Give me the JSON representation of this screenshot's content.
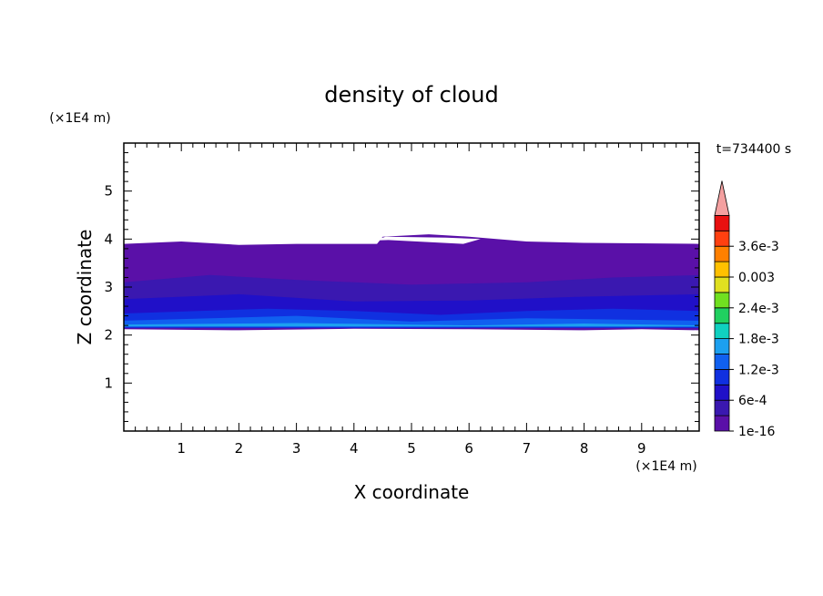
{
  "chart_data": {
    "type": "heatmap",
    "title": "density of cloud",
    "xlabel": "X coordinate",
    "ylabel": "Z coordinate",
    "x_unit": "(×1E4 m)",
    "y_unit": "(×1E4 m)",
    "time_label": "t=734400 s",
    "xlim": [
      0,
      10
    ],
    "ylim": [
      0,
      6
    ],
    "x_ticks": [
      1,
      2,
      3,
      4,
      5,
      6,
      7,
      8,
      9
    ],
    "y_ticks": [
      1,
      2,
      3,
      4,
      5
    ],
    "colorbar": {
      "levels": [
        "1e-16",
        "",
        "6e-4",
        "",
        "1.2e-3",
        "",
        "1.8e-3",
        "",
        "2.4e-3",
        "",
        "0.003",
        "",
        "3.6e-3",
        ""
      ],
      "labels": [
        {
          "text": "1e-16",
          "level": 0
        },
        {
          "text": "6e-4",
          "level": 2
        },
        {
          "text": "1.2e-3",
          "level": 4
        },
        {
          "text": "1.8e-3",
          "level": 6
        },
        {
          "text": "2.4e-3",
          "level": 8
        },
        {
          "text": "0.003",
          "level": 10
        },
        {
          "text": "3.6e-3",
          "level": 12
        }
      ],
      "colors": [
        "#5a10a8",
        "#3a18b0",
        "#2010c8",
        "#1030e0",
        "#1060f0",
        "#1ca0f0",
        "#10d0c0",
        "#20d060",
        "#70e020",
        "#e0e020",
        "#ffc000",
        "#ff8000",
        "#ff4010",
        "#e81010"
      ],
      "extend_color": "#f4a0a0"
    },
    "regions": [
      {
        "name": "cloud-layer",
        "level": 0,
        "outline": [
          [
            0,
            3.9
          ],
          [
            1,
            3.95
          ],
          [
            2,
            3.88
          ],
          [
            3,
            3.9
          ],
          [
            4.4,
            3.9
          ],
          [
            4.5,
            4.05
          ],
          [
            5.3,
            4.1
          ],
          [
            6,
            4.05
          ],
          [
            7,
            3.95
          ],
          [
            8,
            3.92
          ],
          [
            10,
            3.9
          ],
          [
            10,
            2.1
          ],
          [
            9,
            2.12
          ],
          [
            8,
            2.1
          ],
          [
            6,
            2.12
          ],
          [
            4,
            2.13
          ],
          [
            2,
            2.1
          ],
          [
            0,
            2.12
          ]
        ]
      },
      {
        "name": "mid-band",
        "level": 1,
        "outline": [
          [
            0,
            3.1
          ],
          [
            1.5,
            3.25
          ],
          [
            3,
            3.15
          ],
          [
            5,
            3.05
          ],
          [
            7,
            3.1
          ],
          [
            8.5,
            3.2
          ],
          [
            10,
            3.25
          ],
          [
            10,
            2.15
          ],
          [
            0,
            2.15
          ]
        ]
      },
      {
        "name": "lower-band",
        "level": 2,
        "outline": [
          [
            0,
            2.75
          ],
          [
            2,
            2.85
          ],
          [
            4,
            2.7
          ],
          [
            6,
            2.72
          ],
          [
            8,
            2.8
          ],
          [
            10,
            2.85
          ],
          [
            10,
            2.15
          ],
          [
            0,
            2.15
          ]
        ]
      },
      {
        "name": "base-band",
        "level": 3,
        "outline": [
          [
            0,
            2.45
          ],
          [
            2.5,
            2.55
          ],
          [
            4,
            2.5
          ],
          [
            5.5,
            2.42
          ],
          [
            7,
            2.5
          ],
          [
            8.5,
            2.55
          ],
          [
            10,
            2.5
          ],
          [
            10,
            2.15
          ],
          [
            0,
            2.15
          ]
        ]
      },
      {
        "name": "dense-base",
        "level": 4,
        "outline": [
          [
            0,
            2.3
          ],
          [
            3,
            2.4
          ],
          [
            5,
            2.28
          ],
          [
            7,
            2.35
          ],
          [
            10,
            2.3
          ],
          [
            10,
            2.17
          ],
          [
            0,
            2.17
          ]
        ]
      },
      {
        "name": "densest-streak",
        "level": 5,
        "outline": [
          [
            0,
            2.22
          ],
          [
            3,
            2.25
          ],
          [
            6,
            2.2
          ],
          [
            8,
            2.24
          ],
          [
            10,
            2.2
          ],
          [
            10,
            2.18
          ],
          [
            0,
            2.18
          ]
        ]
      }
    ],
    "gaps": [
      {
        "outline": [
          [
            4.35,
            3.97
          ],
          [
            4.55,
            4.05
          ],
          [
            5.6,
            4.03
          ],
          [
            6.2,
            4.0
          ],
          [
            5.9,
            3.9
          ],
          [
            4.6,
            3.98
          ]
        ]
      }
    ]
  }
}
